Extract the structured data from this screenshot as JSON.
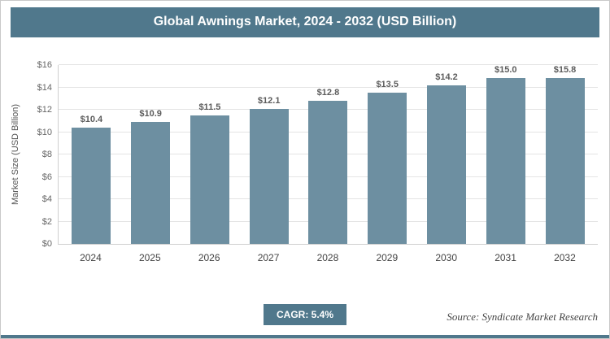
{
  "header": {
    "title": "Global Awnings Market, 2024 - 2032 (USD Billion)"
  },
  "chart_data": {
    "type": "bar",
    "title": "Global Awnings Market, 2024 - 2032 (USD Billion)",
    "categories": [
      "2024",
      "2025",
      "2026",
      "2027",
      "2028",
      "2029",
      "2030",
      "2031",
      "2032"
    ],
    "values": [
      10.4,
      10.9,
      11.5,
      12.1,
      12.8,
      13.5,
      14.2,
      15.0,
      15.8
    ],
    "value_labels": [
      "$10.4",
      "$10.9",
      "$11.5",
      "$12.1",
      "$12.8",
      "$13.5",
      "$14.2",
      "$15.0",
      "$15.8"
    ],
    "xlabel": "",
    "ylabel": "Market Size (USD Billion)",
    "ylim": [
      0,
      16
    ],
    "yticks": [
      0,
      2,
      4,
      6,
      8,
      10,
      12,
      14,
      16
    ],
    "ytick_labels": [
      "$0",
      "$2",
      "$4",
      "$6",
      "$8",
      "$10",
      "$12",
      "$14",
      "$16"
    ],
    "grid": true,
    "legend": "none",
    "bar_color": "#6d8fa1"
  },
  "footer": {
    "cagr_label": "CAGR: 5.4%",
    "source": "Source: Syndicate Market Research"
  },
  "colors": {
    "accent": "#50788c",
    "bar": "#6d8fa1"
  }
}
